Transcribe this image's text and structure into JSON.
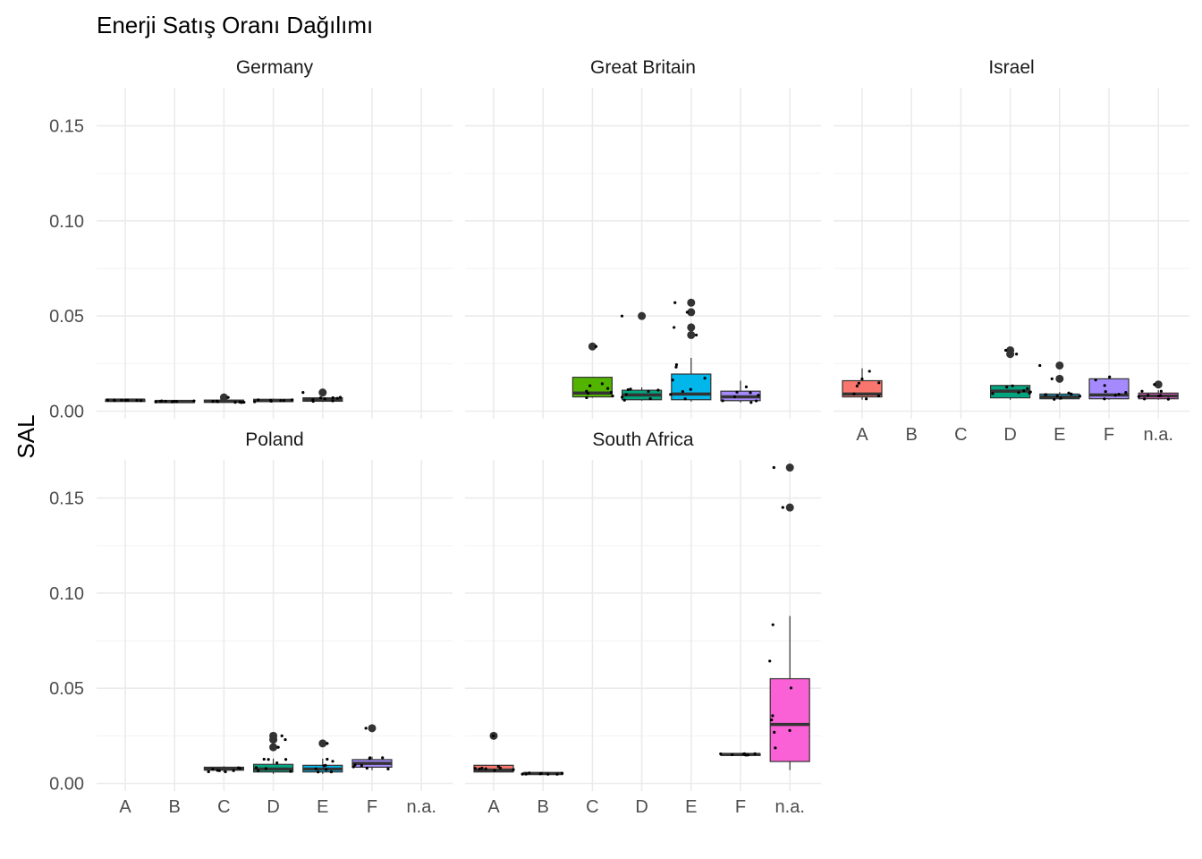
{
  "chart_data": {
    "type": "boxplot",
    "title": "Enerji Satış Oranı Dağılımı",
    "ylabel": "SAL",
    "xlabel": "",
    "ylim": [
      -0.004,
      0.17
    ],
    "y_ticks": [
      0.0,
      0.05,
      0.1,
      0.15
    ],
    "y_tick_labels": [
      "0.00",
      "0.05",
      "0.10",
      "0.15"
    ],
    "categories": [
      "A",
      "B",
      "C",
      "D",
      "E",
      "F",
      "n.a."
    ],
    "grid": true,
    "facet_layout": "3 columns × 2 rows",
    "category_colors": {
      "A": "#F8766D",
      "B": "#C49A00",
      "C": "#53B400",
      "D": "#00A47F",
      "E": "#00B6EB",
      "F": "#A58AFF",
      "n.a.": "#FB61D7"
    },
    "panels": [
      {
        "name": "Germany",
        "boxes": [
          {
            "cat": "B",
            "q1": 0.0055,
            "median": 0.0058,
            "q3": 0.006,
            "lo": 0.0055,
            "hi": 0.006,
            "outliers": []
          },
          {
            "cat": "B",
            "q1": 0.0048,
            "median": 0.0051,
            "q3": 0.0054,
            "lo": 0.0048,
            "hi": 0.0054,
            "outliers": []
          },
          {
            "cat": "C",
            "q1": 0.0046,
            "median": 0.0052,
            "q3": 0.0058,
            "lo": 0.0044,
            "hi": 0.006,
            "outliers": [
              0.0072
            ]
          },
          {
            "cat": "D",
            "q1": 0.005,
            "median": 0.0056,
            "q3": 0.0062,
            "lo": 0.0048,
            "hi": 0.0066,
            "outliers": []
          },
          {
            "cat": "E",
            "q1": 0.0052,
            "median": 0.006,
            "q3": 0.007,
            "lo": 0.0048,
            "hi": 0.0074,
            "outliers": [
              0.0098
            ]
          }
        ]
      },
      {
        "name": "Great Britain",
        "boxes": [
          {
            "cat": "C",
            "q1": 0.0075,
            "median": 0.0095,
            "q3": 0.0178,
            "lo": 0.007,
            "hi": 0.0178,
            "outliers": [
              0.034
            ]
          },
          {
            "cat": "D",
            "q1": 0.006,
            "median": 0.0085,
            "q3": 0.011,
            "lo": 0.0055,
            "hi": 0.0125,
            "outliers": [
              0.05
            ]
          },
          {
            "cat": "E",
            "q1": 0.006,
            "median": 0.009,
            "q3": 0.0195,
            "lo": 0.005,
            "hi": 0.028,
            "outliers": [
              0.04,
              0.044,
              0.052,
              0.057
            ]
          },
          {
            "cat": "F",
            "q1": 0.0055,
            "median": 0.0075,
            "q3": 0.0105,
            "lo": 0.0045,
            "hi": 0.016,
            "outliers": []
          }
        ]
      },
      {
        "name": "Israel",
        "boxes": [
          {
            "cat": "A",
            "q1": 0.0075,
            "median": 0.009,
            "q3": 0.016,
            "lo": 0.006,
            "hi": 0.0225,
            "outliers": []
          },
          {
            "cat": "D",
            "q1": 0.007,
            "median": 0.0105,
            "q3": 0.0135,
            "lo": 0.006,
            "hi": 0.0135,
            "outliers": [
              0.03,
              0.032
            ]
          },
          {
            "cat": "E",
            "q1": 0.0065,
            "median": 0.0075,
            "q3": 0.009,
            "lo": 0.006,
            "hi": 0.01,
            "outliers": [
              0.017,
              0.024
            ]
          },
          {
            "cat": "F",
            "q1": 0.0065,
            "median": 0.0085,
            "q3": 0.017,
            "lo": 0.006,
            "hi": 0.0185,
            "outliers": []
          },
          {
            "cat": "n.a.",
            "q1": 0.0065,
            "median": 0.008,
            "q3": 0.0095,
            "lo": 0.006,
            "hi": 0.011,
            "outliers": [
              0.014
            ]
          }
        ]
      },
      {
        "name": "Poland",
        "boxes": [
          {
            "cat": "C",
            "q1": 0.007,
            "median": 0.0075,
            "q3": 0.0085,
            "lo": 0.006,
            "hi": 0.009,
            "outliers": []
          },
          {
            "cat": "D",
            "q1": 0.006,
            "median": 0.0075,
            "q3": 0.01,
            "lo": 0.005,
            "hi": 0.013,
            "outliers": [
              0.019,
              0.023,
              0.025
            ]
          },
          {
            "cat": "E",
            "q1": 0.006,
            "median": 0.0075,
            "q3": 0.0095,
            "lo": 0.005,
            "hi": 0.013,
            "outliers": [
              0.021
            ]
          },
          {
            "cat": "F",
            "q1": 0.0085,
            "median": 0.0105,
            "q3": 0.0125,
            "lo": 0.007,
            "hi": 0.014,
            "outliers": [
              0.029
            ]
          }
        ]
      },
      {
        "name": "South Africa",
        "boxes": [
          {
            "cat": "A",
            "q1": 0.006,
            "median": 0.007,
            "q3": 0.0095,
            "lo": 0.006,
            "hi": 0.0095,
            "outliers": [
              0.025
            ]
          },
          {
            "cat": "B",
            "q1": 0.0048,
            "median": 0.0052,
            "q3": 0.0056,
            "lo": 0.0048,
            "hi": 0.0056,
            "outliers": []
          },
          {
            "cat": "F",
            "q1": 0.0148,
            "median": 0.0152,
            "q3": 0.0156,
            "lo": 0.0148,
            "hi": 0.0156,
            "outliers": []
          },
          {
            "cat": "n.a.",
            "q1": 0.0115,
            "median": 0.031,
            "q3": 0.055,
            "lo": 0.007,
            "hi": 0.088,
            "outliers": [
              0.145,
              0.166
            ]
          }
        ]
      }
    ]
  }
}
